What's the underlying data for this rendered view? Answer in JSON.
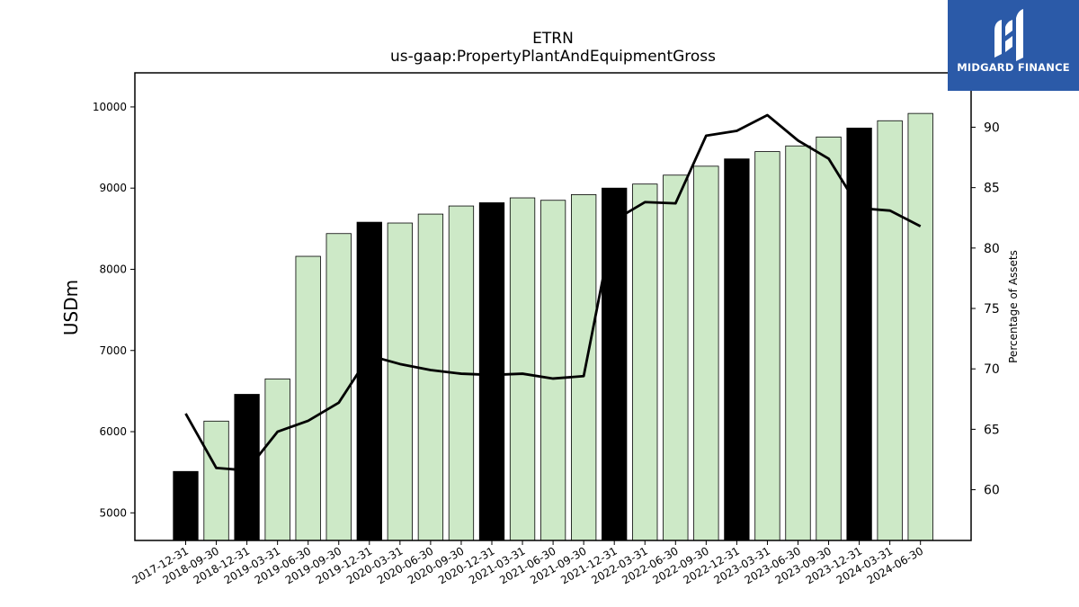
{
  "chart_data": {
    "type": "bar",
    "title": "ETRN",
    "subtitle": "us-gaap:PropertyPlantAndEquipmentGross",
    "ylabel": "USDm",
    "y2label": "Percentage of Assets",
    "ylim": [
      4660,
      10420
    ],
    "y2lim": [
      55.8,
      94.5
    ],
    "yticks": [
      5000,
      6000,
      7000,
      8000,
      9000,
      10000
    ],
    "y2ticks": [
      60,
      65,
      70,
      75,
      80,
      85,
      90
    ],
    "categories": [
      "2017-12-31",
      "2018-09-30",
      "2018-12-31",
      "2019-03-31",
      "2019-06-30",
      "2019-09-30",
      "2019-12-31",
      "2020-03-31",
      "2020-06-30",
      "2020-09-30",
      "2020-12-31",
      "2021-03-31",
      "2021-06-30",
      "2021-09-30",
      "2021-12-31",
      "2022-03-31",
      "2022-06-30",
      "2022-09-30",
      "2022-12-31",
      "2023-03-31",
      "2023-06-30",
      "2023-09-30",
      "2023-12-31",
      "2024-03-31",
      "2024-06-30"
    ],
    "series": [
      {
        "type": "bar",
        "values": [
          5510,
          6130,
          6460,
          6650,
          8160,
          8440,
          8580,
          8570,
          8680,
          8780,
          8820,
          8880,
          8850,
          8920,
          9000,
          9050,
          9160,
          9270,
          9360,
          9450,
          9520,
          9630,
          9740,
          9830,
          9920
        ],
        "annual": [
          true,
          false,
          true,
          false,
          false,
          false,
          true,
          false,
          false,
          false,
          true,
          false,
          false,
          false,
          true,
          false,
          false,
          false,
          true,
          false,
          false,
          false,
          true,
          false,
          false
        ],
        "colors": {
          "annual": "#000000",
          "quarterly": "#cde9c7",
          "edge": "#000000"
        }
      },
      {
        "type": "line",
        "axis": "right",
        "values": [
          66.3,
          61.8,
          61.6,
          64.8,
          65.7,
          67.2,
          71.1,
          70.4,
          69.9,
          69.6,
          69.5,
          69.6,
          69.2,
          69.4,
          82.3,
          83.8,
          83.7,
          89.3,
          89.7,
          91.0,
          88.9,
          87.4,
          83.3,
          83.1,
          81.8
        ],
        "color": "#000000"
      }
    ]
  },
  "logo": {
    "text": "MIDGARD FINANCE",
    "bg": "#2b5aa8"
  }
}
